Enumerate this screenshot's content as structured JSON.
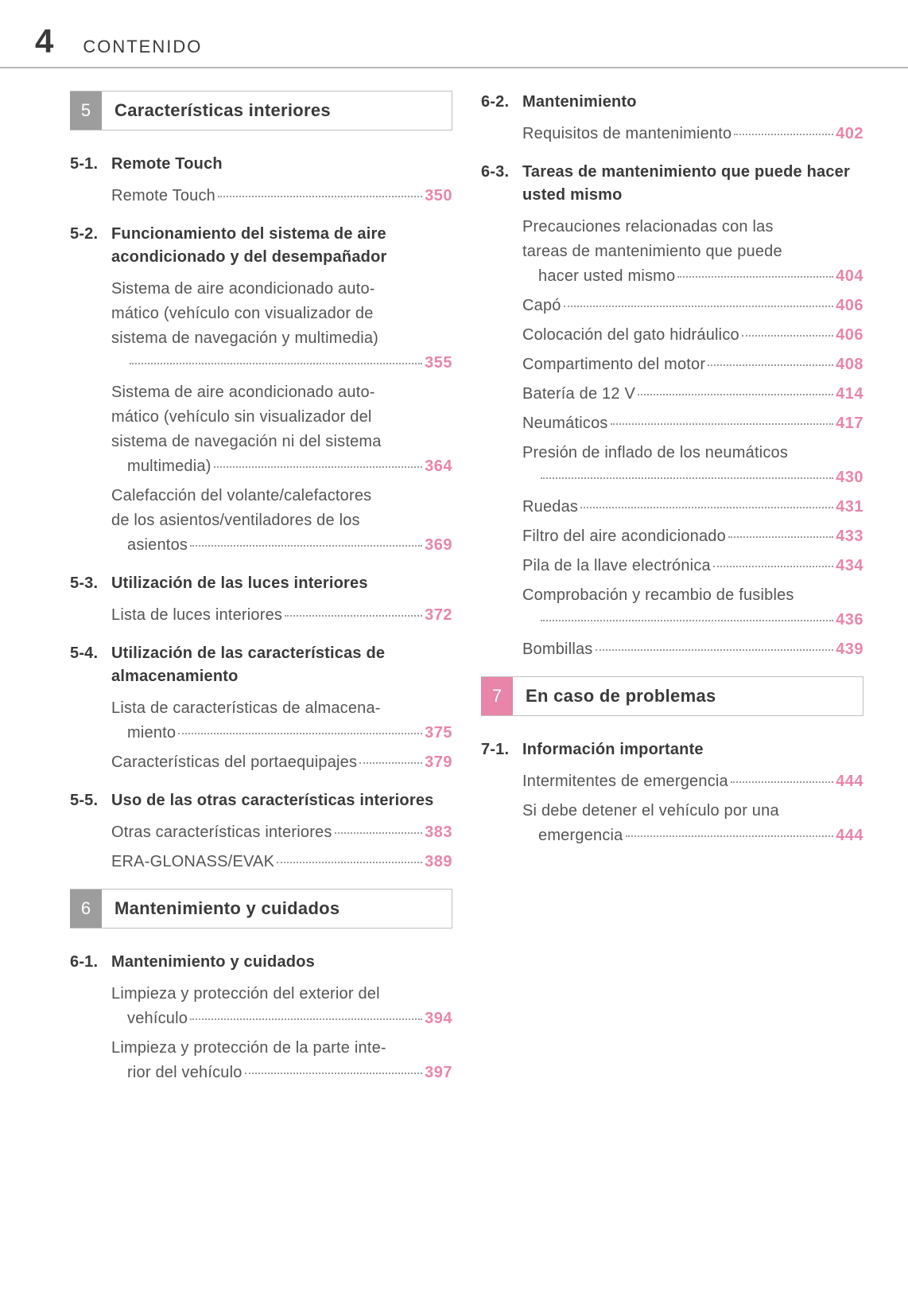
{
  "page_number": "4",
  "header_title": "CONTENIDO",
  "accent_color": "#e985a9",
  "section_gray": "#9d9d9d",
  "columns": [
    {
      "blocks": [
        {
          "type": "section",
          "num": "5",
          "color": "gray",
          "title": "Características interiores"
        },
        {
          "type": "subsection",
          "num": "5-1.",
          "title": "Remote Touch",
          "entries": [
            {
              "text_lines": [
                "Remote Touch"
              ],
              "page": "350"
            }
          ]
        },
        {
          "type": "subsection",
          "num": "5-2.",
          "title": "Funcionamiento del sistema de aire acondicionado y del desempañador",
          "entries": [
            {
              "text_lines": [
                "Sistema de aire acondicionado auto-",
                "mático (vehículo con visualizador de",
                "sistema de navegación y multimedia)",
                ""
              ],
              "page": "355"
            },
            {
              "text_lines": [
                "Sistema de aire acondicionado auto-",
                "mático (vehículo sin visualizador del",
                "sistema de navegación ni del sistema",
                "multimedia)"
              ],
              "page": "364"
            },
            {
              "text_lines": [
                "Calefacción del volante/calefactores",
                "de los asientos/ventiladores de los",
                "asientos"
              ],
              "page": "369"
            }
          ]
        },
        {
          "type": "subsection",
          "num": "5-3.",
          "title": "Utilización de las luces interiores",
          "entries": [
            {
              "text_lines": [
                "Lista de luces interiores"
              ],
              "page": "372"
            }
          ]
        },
        {
          "type": "subsection",
          "num": "5-4.",
          "title": "Utilización de las características de almacenamiento",
          "entries": [
            {
              "text_lines": [
                "Lista de características de almacena-",
                "miento"
              ],
              "page": "375"
            },
            {
              "text_lines": [
                "Características del portaequipajes"
              ],
              "page": "379"
            }
          ]
        },
        {
          "type": "subsection",
          "num": "5-5.",
          "title": "Uso de las otras características interiores",
          "entries": [
            {
              "text_lines": [
                "Otras características interiores"
              ],
              "page": "383"
            },
            {
              "text_lines": [
                "ERA-GLONASS/EVAK"
              ],
              "page": "389"
            }
          ]
        },
        {
          "type": "section",
          "num": "6",
          "color": "gray",
          "title": "Mantenimiento y cuidados"
        },
        {
          "type": "subsection",
          "num": "6-1.",
          "title": "Mantenimiento y cuidados",
          "entries": [
            {
              "text_lines": [
                "Limpieza y protección del exterior del",
                "vehículo"
              ],
              "page": "394"
            },
            {
              "text_lines": [
                "Limpieza y protección de la parte inte-",
                "rior del vehículo"
              ],
              "page": "397"
            }
          ]
        }
      ]
    },
    {
      "blocks": [
        {
          "type": "subsection",
          "num": "6-2.",
          "title": "Mantenimiento",
          "entries": [
            {
              "text_lines": [
                "Requisitos de mantenimiento"
              ],
              "page": "402"
            }
          ]
        },
        {
          "type": "subsection",
          "num": "6-3.",
          "title": "Tareas de mantenimiento que puede hacer usted mismo",
          "entries": [
            {
              "text_lines": [
                "Precauciones relacionadas con las",
                "tareas de mantenimiento que puede",
                "hacer usted mismo"
              ],
              "page": "404"
            },
            {
              "text_lines": [
                "Capó"
              ],
              "page": "406"
            },
            {
              "text_lines": [
                "Colocación del gato hidráulico"
              ],
              "page": "406"
            },
            {
              "text_lines": [
                "Compartimento del motor"
              ],
              "page": "408"
            },
            {
              "text_lines": [
                "Batería de 12 V"
              ],
              "page": "414"
            },
            {
              "text_lines": [
                "Neumáticos"
              ],
              "page": "417"
            },
            {
              "text_lines": [
                "Presión de inflado de los neumáticos",
                ""
              ],
              "page": "430"
            },
            {
              "text_lines": [
                "Ruedas"
              ],
              "page": "431"
            },
            {
              "text_lines": [
                "Filtro del aire acondicionado"
              ],
              "page": "433"
            },
            {
              "text_lines": [
                "Pila de la llave electrónica"
              ],
              "page": "434"
            },
            {
              "text_lines": [
                "Comprobación y recambio de fusibles",
                ""
              ],
              "page": "436"
            },
            {
              "text_lines": [
                "Bombillas"
              ],
              "page": "439"
            }
          ]
        },
        {
          "type": "section",
          "num": "7",
          "color": "pink",
          "title": "En caso de problemas"
        },
        {
          "type": "subsection",
          "num": "7-1.",
          "title": "Información importante",
          "entries": [
            {
              "text_lines": [
                "Intermitentes de emergencia"
              ],
              "page": "444"
            },
            {
              "text_lines": [
                "Si debe detener el vehículo por una",
                "emergencia"
              ],
              "page": "444"
            }
          ]
        }
      ]
    }
  ]
}
